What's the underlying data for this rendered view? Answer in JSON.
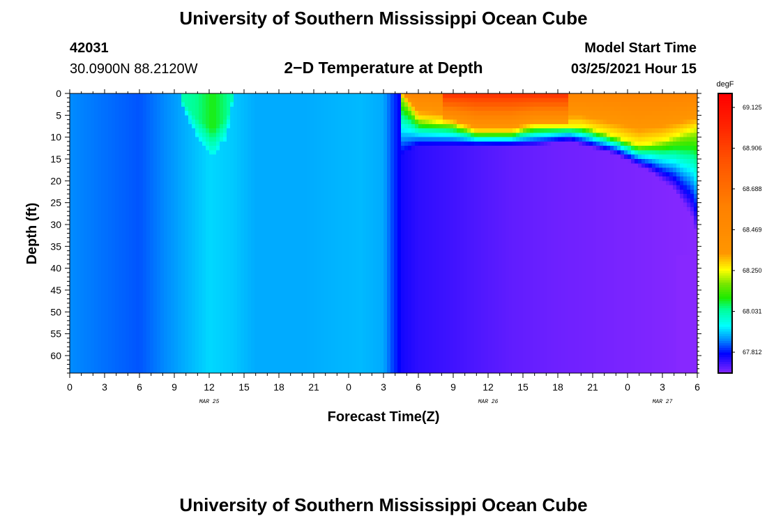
{
  "header": {
    "title": "University of Southern Mississippi Ocean Cube",
    "station_id": "42031",
    "location": "30.0900N 88.2120W",
    "subtitle": "2−D Temperature at Depth",
    "model_start_label": "Model Start Time",
    "model_start_value": "03/25/2021 Hour 15"
  },
  "footer": {
    "title": "University of Southern Mississippi Ocean Cube"
  },
  "chart_data": {
    "type": "heatmap",
    "title": "2−D Temperature at Depth",
    "xlabel": "Forecast Time(Z)",
    "ylabel": "Depth (ft)",
    "xlim": [
      0,
      54
    ],
    "ylim": [
      0,
      64
    ],
    "x_ticks": [
      0,
      3,
      6,
      9,
      12,
      15,
      18,
      21,
      24,
      27,
      30,
      33,
      36,
      39,
      42,
      45,
      48,
      51,
      54
    ],
    "x_tick_labels": [
      "0",
      "3",
      "6",
      "9",
      "12",
      "15",
      "18",
      "21",
      "0",
      "3",
      "6",
      "9",
      "12",
      "15",
      "18",
      "21",
      "0",
      "3",
      "6"
    ],
    "date_labels": [
      {
        "hour": 12,
        "label": "MAR 25"
      },
      {
        "hour": 36,
        "label": "MAR 26"
      },
      {
        "hour": 51,
        "label": "MAR 27"
      }
    ],
    "y_ticks": [
      0,
      5,
      10,
      15,
      20,
      25,
      30,
      35,
      40,
      45,
      50,
      55,
      60
    ],
    "colorbar": {
      "unit": "degF",
      "min": 67.7,
      "max": 69.2,
      "tick_values": [
        69.125,
        68.906,
        68.688,
        68.469,
        68.25,
        68.031,
        67.812
      ],
      "tick_labels": [
        "69.125",
        "68.906",
        "68.688",
        "68.469",
        "68.250",
        "68.031",
        "67.812"
      ]
    },
    "time_columns": [
      {
        "hour": 0,
        "temp": 67.88
      },
      {
        "hour": 4,
        "temp": 67.86
      },
      {
        "hour": 6,
        "temp": 67.85
      },
      {
        "hour": 9,
        "temp": 67.89
      },
      {
        "hour": 12,
        "temp": 67.93
      },
      {
        "hour": 14,
        "temp": 67.92
      },
      {
        "hour": 16,
        "temp": 67.9
      },
      {
        "hour": 20,
        "temp": 67.9
      },
      {
        "hour": 25,
        "temp": 67.91
      },
      {
        "hour": 27,
        "temp": 67.9
      },
      {
        "hour": 27.8,
        "temp": 67.84
      },
      {
        "hour": 28.6,
        "temp": 67.79
      },
      {
        "hour": 30,
        "temp": 67.77
      },
      {
        "hour": 36,
        "temp": 67.74
      },
      {
        "hour": 38,
        "temp": 67.73
      },
      {
        "hour": 42,
        "temp": 67.72
      },
      {
        "hour": 48,
        "temp": 67.71
      },
      {
        "hour": 54,
        "temp": 67.7
      }
    ],
    "surface_warm_layer": [
      {
        "hour": 9.5,
        "depth": 0,
        "temp": 68.02
      },
      {
        "hour": 11,
        "depth": 8,
        "temp": 68.05
      },
      {
        "hour": 12.3,
        "depth": 12,
        "temp": 68.1
      },
      {
        "hour": 13.5,
        "depth": 8,
        "temp": 68.05
      },
      {
        "hour": 14,
        "depth": 0,
        "temp": 68.02
      }
    ],
    "warm_layer_bottom_depth": [
      {
        "hour": 28.5,
        "depth": 0
      },
      {
        "hour": 30,
        "depth": 6
      },
      {
        "hour": 33,
        "depth": 7
      },
      {
        "hour": 35,
        "depth": 9
      },
      {
        "hour": 38,
        "depth": 9
      },
      {
        "hour": 40,
        "depth": 7.5
      },
      {
        "hour": 44,
        "depth": 7.5
      },
      {
        "hour": 47,
        "depth": 10
      },
      {
        "hour": 49,
        "depth": 12
      },
      {
        "hour": 51,
        "depth": 11
      },
      {
        "hour": 54,
        "depth": 8
      }
    ],
    "warm_layer_temp_surface": 69.0,
    "warm_layer_temp_base": 68.25,
    "thermocline_bottom_depth": [
      {
        "hour": 28.5,
        "depth": 14
      },
      {
        "hour": 30,
        "depth": 12
      },
      {
        "hour": 33,
        "depth": 12
      },
      {
        "hour": 36,
        "depth": 12
      },
      {
        "hour": 40,
        "depth": 12
      },
      {
        "hour": 43,
        "depth": 11
      },
      {
        "hour": 47,
        "depth": 14
      },
      {
        "hour": 50,
        "depth": 18
      },
      {
        "hour": 52,
        "depth": 22
      },
      {
        "hour": 53.5,
        "depth": 28
      },
      {
        "hour": 54,
        "depth": 33
      }
    ]
  }
}
